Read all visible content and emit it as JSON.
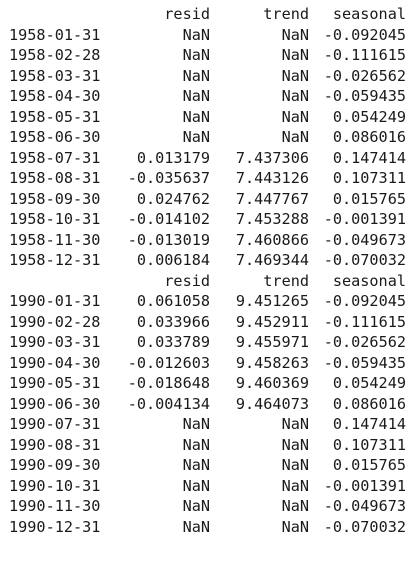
{
  "columns": [
    "resid",
    "trend",
    "seasonal"
  ],
  "blocks": [
    {
      "rows": [
        {
          "index": "1958-01-31",
          "resid": "NaN",
          "trend": "NaN",
          "seasonal": "-0.092045"
        },
        {
          "index": "1958-02-28",
          "resid": "NaN",
          "trend": "NaN",
          "seasonal": "-0.111615"
        },
        {
          "index": "1958-03-31",
          "resid": "NaN",
          "trend": "NaN",
          "seasonal": "-0.026562"
        },
        {
          "index": "1958-04-30",
          "resid": "NaN",
          "trend": "NaN",
          "seasonal": "-0.059435"
        },
        {
          "index": "1958-05-31",
          "resid": "NaN",
          "trend": "NaN",
          "seasonal": "0.054249"
        },
        {
          "index": "1958-06-30",
          "resid": "NaN",
          "trend": "NaN",
          "seasonal": "0.086016"
        },
        {
          "index": "1958-07-31",
          "resid": "0.013179",
          "trend": "7.437306",
          "seasonal": "0.147414"
        },
        {
          "index": "1958-08-31",
          "resid": "-0.035637",
          "trend": "7.443126",
          "seasonal": "0.107311"
        },
        {
          "index": "1958-09-30",
          "resid": "0.024762",
          "trend": "7.447767",
          "seasonal": "0.015765"
        },
        {
          "index": "1958-10-31",
          "resid": "-0.014102",
          "trend": "7.453288",
          "seasonal": "-0.001391"
        },
        {
          "index": "1958-11-30",
          "resid": "-0.013019",
          "trend": "7.460866",
          "seasonal": "-0.049673"
        },
        {
          "index": "1958-12-31",
          "resid": "0.006184",
          "trend": "7.469344",
          "seasonal": "-0.070032"
        }
      ]
    },
    {
      "rows": [
        {
          "index": "1990-01-31",
          "resid": "0.061058",
          "trend": "9.451265",
          "seasonal": "-0.092045"
        },
        {
          "index": "1990-02-28",
          "resid": "0.033966",
          "trend": "9.452911",
          "seasonal": "-0.111615"
        },
        {
          "index": "1990-03-31",
          "resid": "0.033789",
          "trend": "9.455971",
          "seasonal": "-0.026562"
        },
        {
          "index": "1990-04-30",
          "resid": "-0.012603",
          "trend": "9.458263",
          "seasonal": "-0.059435"
        },
        {
          "index": "1990-05-31",
          "resid": "-0.018648",
          "trend": "9.460369",
          "seasonal": "0.054249"
        },
        {
          "index": "1990-06-30",
          "resid": "-0.004134",
          "trend": "9.464073",
          "seasonal": "0.086016"
        },
        {
          "index": "1990-07-31",
          "resid": "NaN",
          "trend": "NaN",
          "seasonal": "0.147414"
        },
        {
          "index": "1990-08-31",
          "resid": "NaN",
          "trend": "NaN",
          "seasonal": "0.107311"
        },
        {
          "index": "1990-09-30",
          "resid": "NaN",
          "trend": "NaN",
          "seasonal": "0.015765"
        },
        {
          "index": "1990-10-31",
          "resid": "NaN",
          "trend": "NaN",
          "seasonal": "-0.001391"
        },
        {
          "index": "1990-11-30",
          "resid": "NaN",
          "trend": "NaN",
          "seasonal": "-0.049673"
        },
        {
          "index": "1990-12-31",
          "resid": "NaN",
          "trend": "NaN",
          "seasonal": "-0.070032"
        }
      ]
    }
  ]
}
